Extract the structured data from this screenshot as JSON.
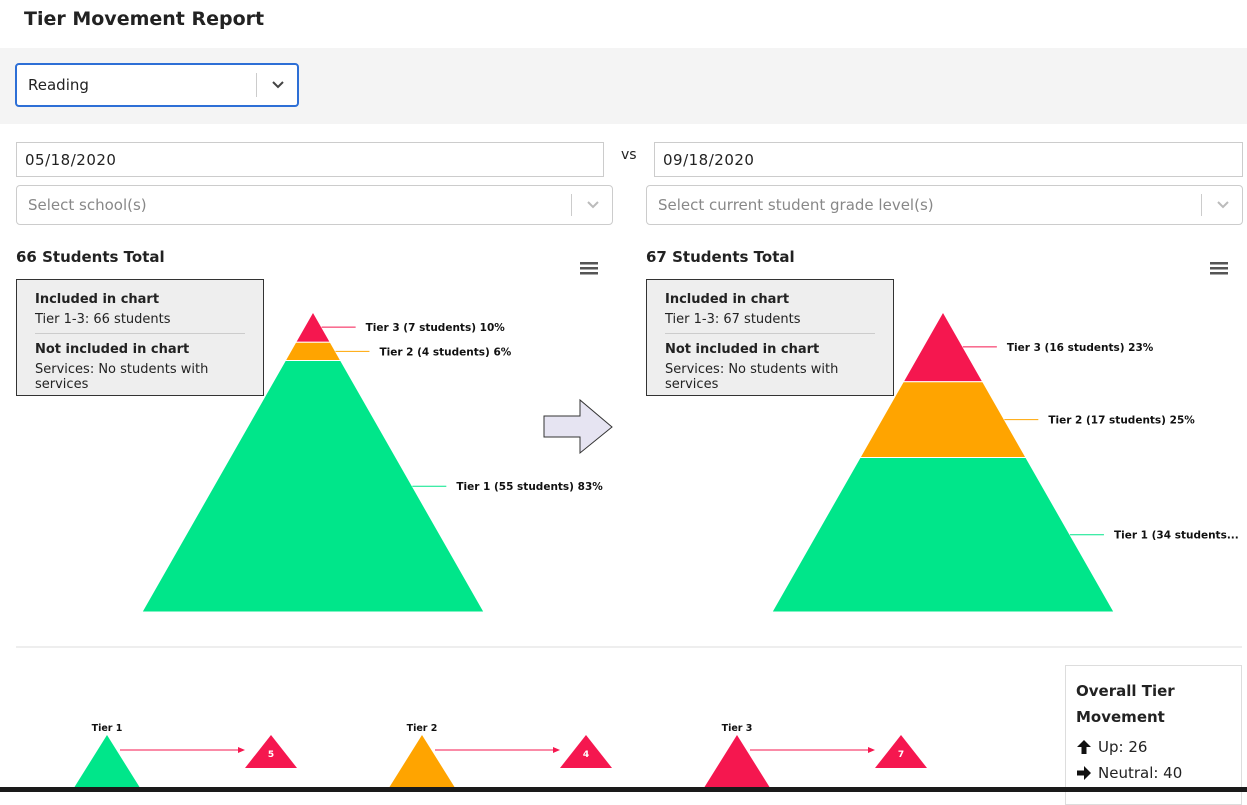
{
  "header": {
    "title": "Tier Movement Report"
  },
  "filters": {
    "subject": "Reading",
    "start_date": "05/18/2020",
    "vs": "vs",
    "end_date": "09/18/2020",
    "school_placeholder": "Select school(s)",
    "grade_placeholder": "Select current student grade level(s)"
  },
  "pyramids": [
    {
      "total": "66 Students Total",
      "info": {
        "included_heading": "Included in chart",
        "included": "Tier 1-3: 66 students",
        "excluded_heading": "Not included in chart",
        "excluded": "Services: No students with services"
      },
      "tiers": [
        {
          "label": "Tier 3 (7 students) 10%",
          "percent": 10,
          "color": "#f5174f"
        },
        {
          "label": "Tier 2 (4 students) 6%",
          "percent": 6,
          "color": "#ffa400"
        },
        {
          "label": "Tier 1 (55 students) 83%",
          "percent": 83,
          "color": "#00e68a"
        }
      ]
    },
    {
      "total": "67 Students Total",
      "info": {
        "included_heading": "Included in chart",
        "included": "Tier 1-3: 67 students",
        "excluded_heading": "Not included in chart",
        "excluded": "Services: No students with services"
      },
      "tiers": [
        {
          "label": "Tier 3 (16 students) 23%",
          "percent": 23,
          "color": "#f5174f"
        },
        {
          "label": "Tier 2 (17 students) 25%",
          "percent": 25,
          "color": "#ffa400"
        },
        {
          "label": "Tier 1 (34 students...",
          "percent": 51,
          "color": "#00e68a"
        }
      ]
    }
  ],
  "movement": {
    "items": [
      {
        "tier": "Tier 1",
        "count": 5,
        "color": "#00e68a"
      },
      {
        "tier": "Tier 2",
        "count": 4,
        "color": "#ffa400"
      },
      {
        "tier": "Tier 3",
        "count": 7,
        "color": "#f5174f"
      }
    ]
  },
  "overall": {
    "title": "Overall Tier Movement",
    "items": [
      "Up: 26",
      "Neutral: 40"
    ]
  }
}
